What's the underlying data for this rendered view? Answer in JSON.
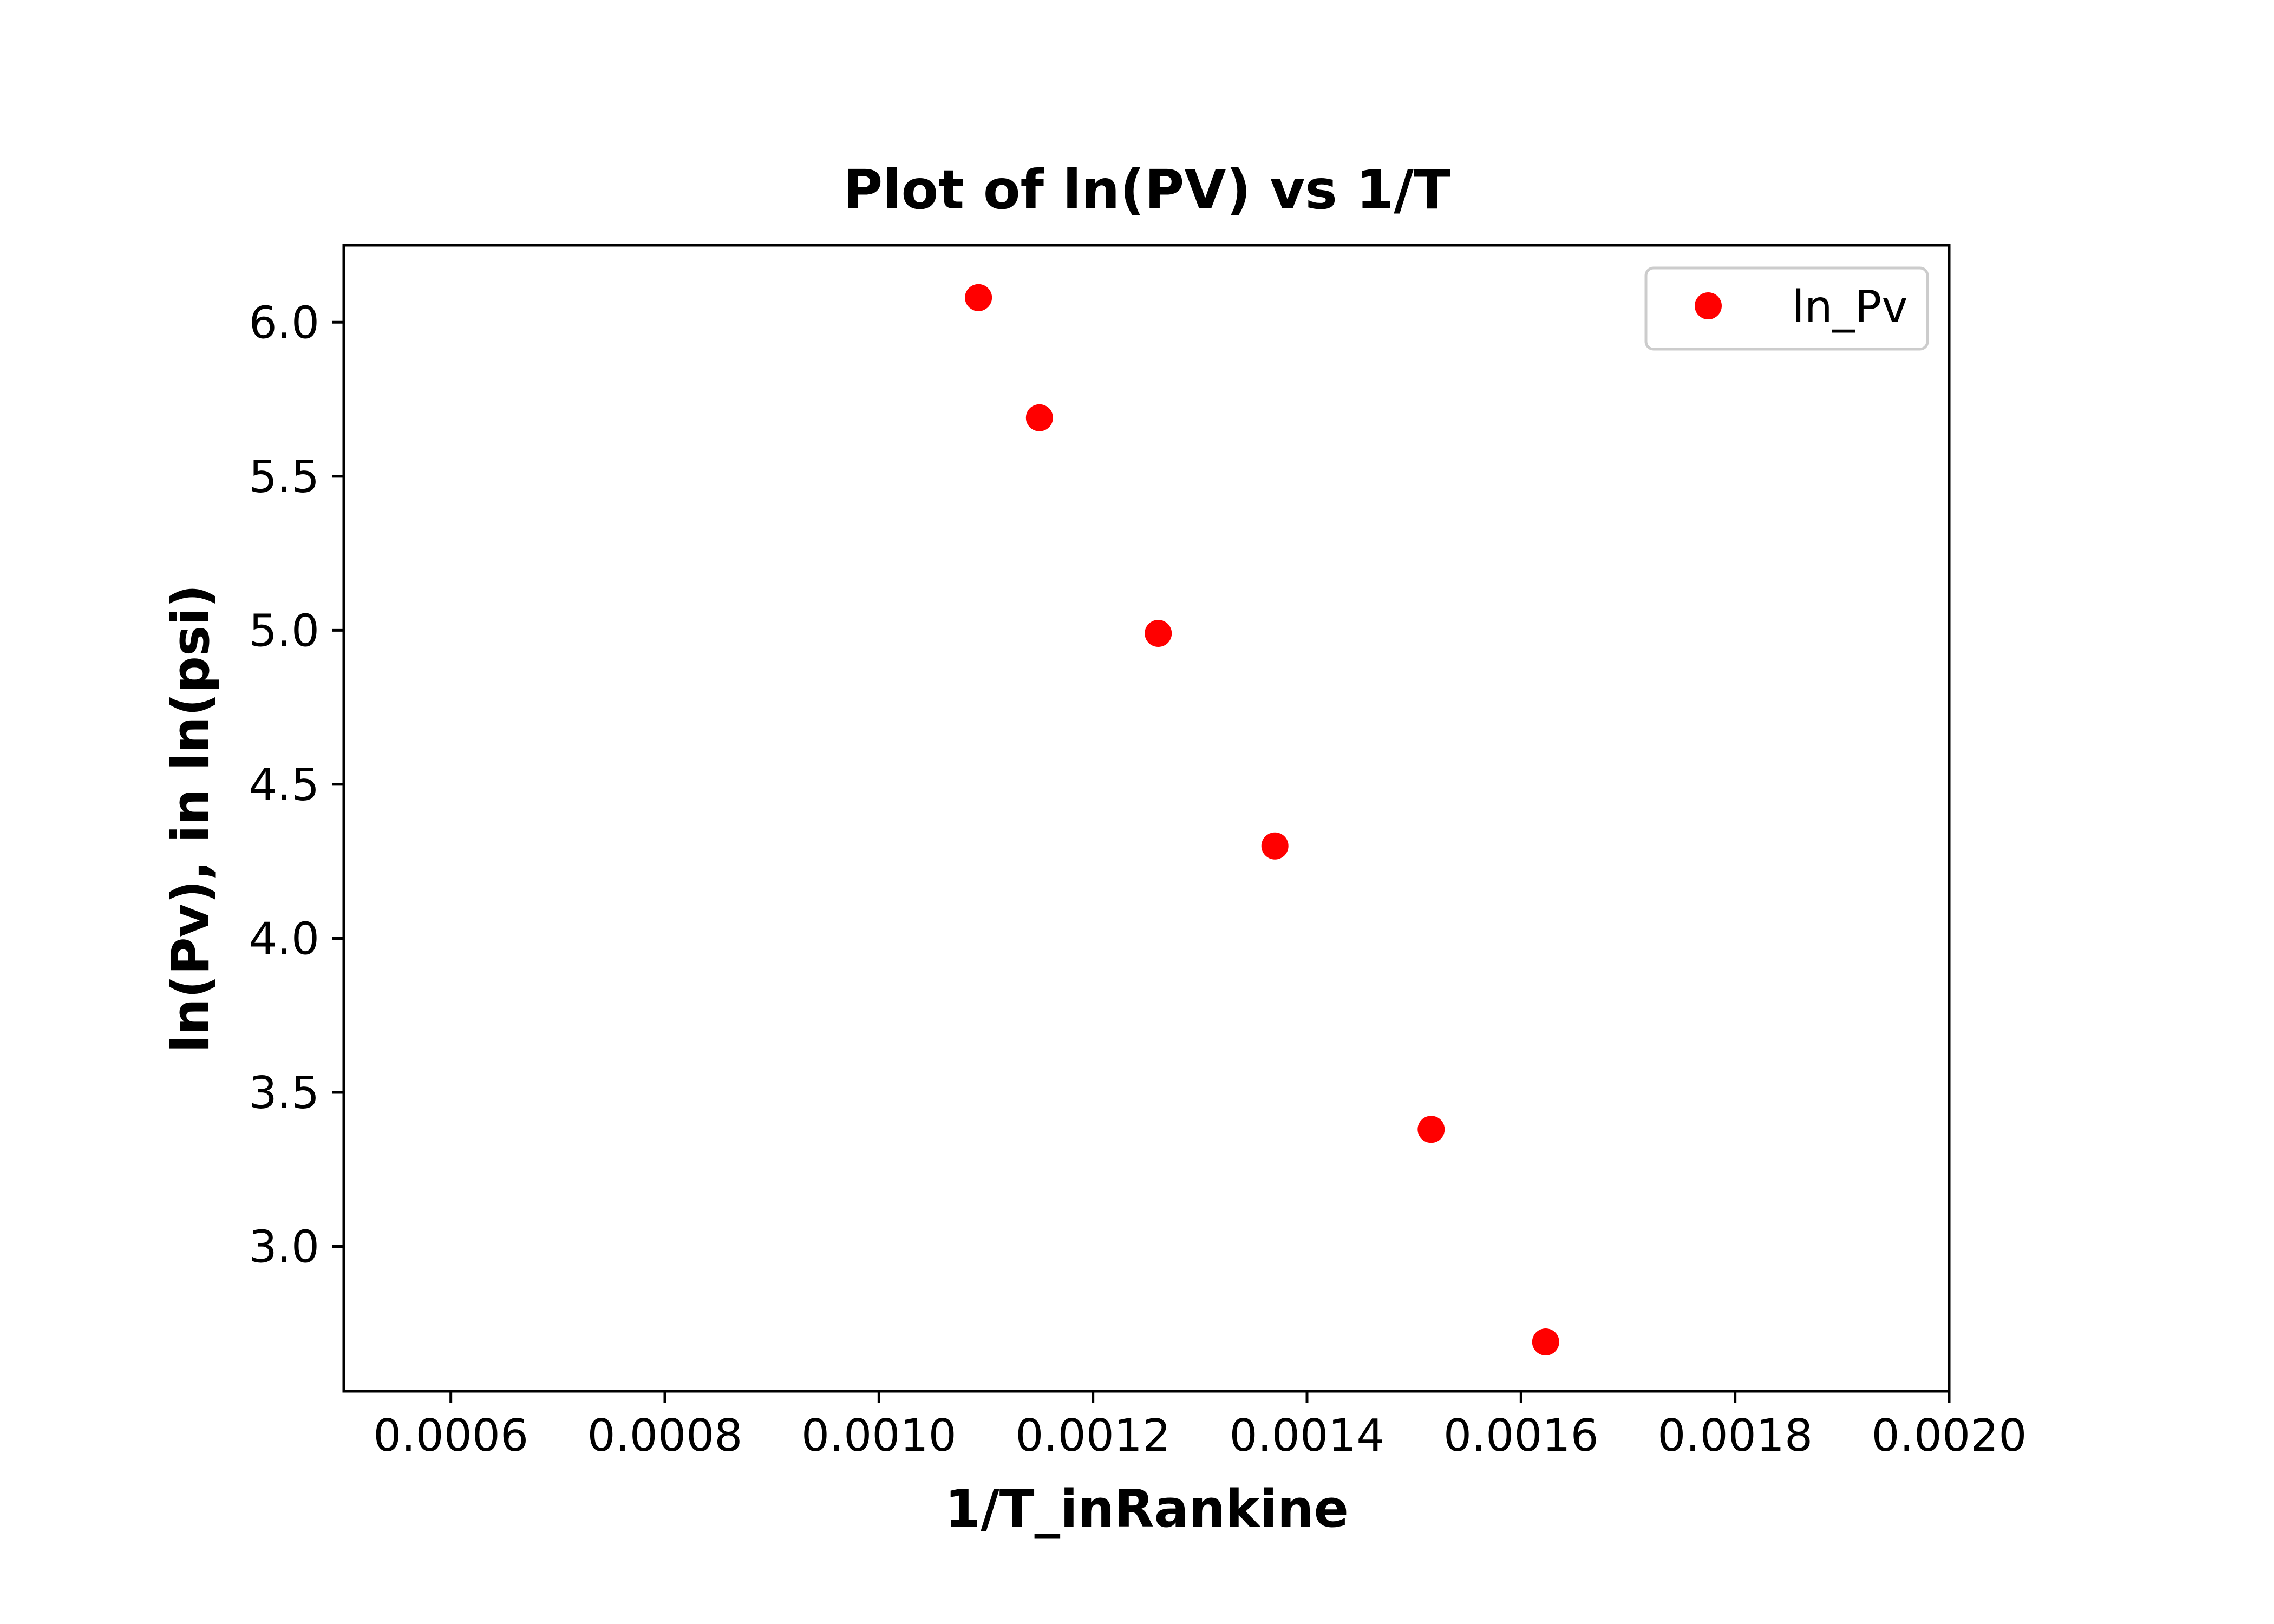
{
  "chart_data": {
    "type": "scatter",
    "title": "Plot of ln(PV) vs 1/T",
    "xlabel": "1/T_inRankine",
    "ylabel": "ln(Pv), in ln(psi)",
    "xlim": [
      0.0005,
      0.002
    ],
    "ylim": [
      2.53,
      6.25
    ],
    "x_ticks": [
      "0.0006",
      "0.0008",
      "0.0010",
      "0.0012",
      "0.0014",
      "0.0016",
      "0.0018",
      "0.0020"
    ],
    "y_ticks": [
      "3.0",
      "3.5",
      "4.0",
      "4.5",
      "5.0",
      "5.5",
      "6.0"
    ],
    "grid": false,
    "legend_position": "upper right",
    "series": [
      {
        "name": "ln_Pv",
        "color": "#ff0000",
        "marker": "circle",
        "points": [
          {
            "x": 0.001093,
            "y": 6.08
          },
          {
            "x": 0.00115,
            "y": 5.69
          },
          {
            "x": 0.001261,
            "y": 4.99
          },
          {
            "x": 0.00137,
            "y": 4.3
          },
          {
            "x": 0.001516,
            "y": 3.38
          },
          {
            "x": 0.001623,
            "y": 2.69
          }
        ]
      }
    ]
  }
}
